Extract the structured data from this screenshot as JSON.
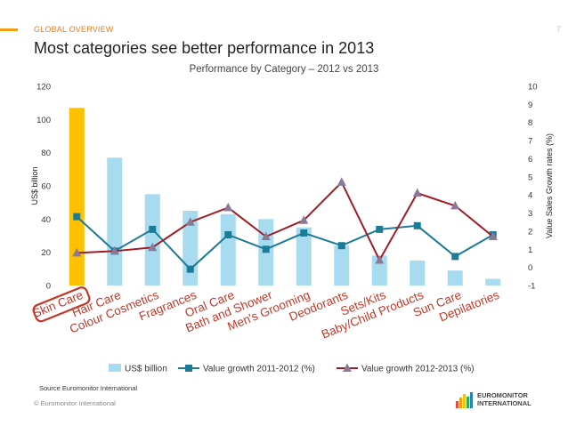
{
  "header": {
    "section_label": "GLOBAL OVERVIEW",
    "page_number": "7",
    "slide_title": "Most categories see better performance in 2013"
  },
  "footer": {
    "source": "Source Euromonitor International",
    "copyright": "© Euromonitor International",
    "logo_line1": "EUROMONITOR",
    "logo_line2": "INTERNATIONAL"
  },
  "colors": {
    "highlight_bar": "#ffc000",
    "bar": "#a7dcf0",
    "line_2011_2012": "#1c7b95",
    "line_2012_2013": "#a01d26",
    "marker_2012_2013": "#8a7a95",
    "highlight_outline": "#c0392b",
    "accent": "#f39c12"
  },
  "chart_data": {
    "type": "bar",
    "title": "Performance by Category – 2012 vs 2013",
    "ylabel": "US$ billion",
    "y2label": "Value Sales Growth rates (%)",
    "categories": [
      "Skin Care",
      "Hair Care",
      "Colour Cosmetics",
      "Fragrances",
      "Oral Care",
      "Bath and Shower",
      "Men's Grooming",
      "Deodorants",
      "Sets/Kits",
      "Baby/Child Products",
      "Sun Care",
      "Depilatories"
    ],
    "highlight_category": "Skin Care",
    "ylim": [
      0,
      120
    ],
    "yticks": [
      0,
      20,
      40,
      60,
      80,
      100,
      120
    ],
    "y2lim": [
      -1,
      10
    ],
    "y2ticks": [
      -1,
      0,
      1,
      2,
      3,
      4,
      5,
      6,
      7,
      8,
      9,
      10
    ],
    "grid": false,
    "legend_position": "bottom",
    "series": [
      {
        "name": "US$ billion",
        "type": "bar",
        "axis": "left",
        "values": [
          107,
          77,
          55,
          45,
          43,
          40,
          35,
          24,
          18,
          15,
          9,
          4
        ]
      },
      {
        "name": "Value growth 2011-2012 (%)",
        "type": "line",
        "axis": "right",
        "marker": "square",
        "values": [
          2.8,
          0.9,
          2.1,
          -0.1,
          1.8,
          1.0,
          1.9,
          1.2,
          2.1,
          2.3,
          0.6,
          1.8
        ]
      },
      {
        "name": "Value growth 2012-2013 (%)",
        "type": "line",
        "axis": "right",
        "marker": "triangle",
        "values": [
          0.8,
          0.9,
          1.1,
          2.5,
          3.3,
          1.7,
          2.6,
          4.7,
          0.4,
          4.1,
          3.4,
          1.7
        ]
      }
    ]
  }
}
